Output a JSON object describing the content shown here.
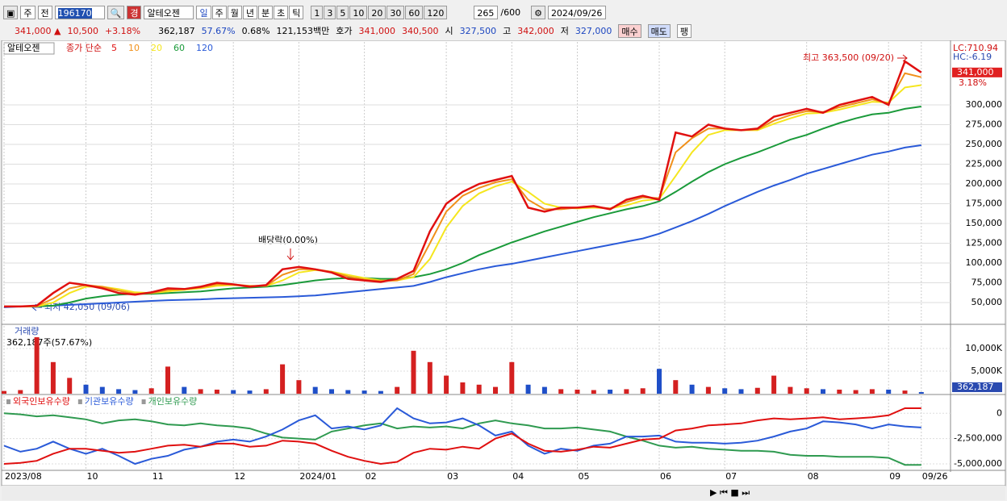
{
  "toolbar": {
    "period_type": "주",
    "prev": "전",
    "code": "196170",
    "badge": "경",
    "stock_name": "알테오젠",
    "periods": [
      "일",
      "주",
      "월",
      "년",
      "분",
      "초",
      "틱"
    ],
    "intervals": [
      "1",
      "3",
      "5",
      "10",
      "20",
      "30",
      "60",
      "120"
    ],
    "count": "265",
    "max_count": "/600",
    "date": "2024/09/26"
  },
  "info_bar": {
    "price": "341,000 ▲",
    "change": "10,500",
    "change_pct": "+3.18%",
    "volume": "362,187",
    "volume_ratio": "57.67%",
    "turnover": "0.68%",
    "amount": "121,153백만",
    "quote_label": "호가",
    "ask": "341,000",
    "bid": "340,500",
    "open_label": "시",
    "open": "327,500",
    "high_label": "고",
    "high": "342,000",
    "low_label": "저",
    "low": "327,000",
    "buy": "매수",
    "sell": "매도",
    "extra": "팽"
  },
  "chart_data": [
    {
      "type": "line",
      "title": "알테오젠",
      "legend_prefix": "종가 단순",
      "ylim": [
        24500,
        379600
      ],
      "yticks": [
        {
          "value": 50000,
          "label": "50,000"
        },
        {
          "value": 75000,
          "label": "75,000"
        },
        {
          "value": 100000,
          "label": "100,000"
        },
        {
          "value": 125000,
          "label": "125,000"
        },
        {
          "value": 150000,
          "label": "150,000"
        },
        {
          "value": 175000,
          "label": "175,000"
        },
        {
          "value": 200000,
          "label": "200,000"
        },
        {
          "value": 225000,
          "label": "225,000"
        },
        {
          "value": 250000,
          "label": "250,000"
        },
        {
          "value": 275000,
          "label": "275,000"
        },
        {
          "value": 300000,
          "label": "300,000"
        }
      ],
      "grid": true,
      "annotations": [
        "최고 363,500 (09/20)",
        "최저 42,050 (09/06)",
        "배당락(0.00%)"
      ],
      "lc_label": "LC:710.94",
      "hc_label": "HC:-6.19",
      "price_label": "341,000",
      "change_label": "3.18%",
      "series": [
        {
          "name": "5",
          "color": "#e01010",
          "values": [
            45000,
            45000,
            46000,
            62000,
            75000,
            72000,
            68000,
            62000,
            60000,
            63000,
            68000,
            67000,
            70000,
            75000,
            73000,
            70000,
            72000,
            92000,
            95000,
            92000,
            88000,
            80000,
            78000,
            76000,
            80000,
            90000,
            140000,
            175000,
            190000,
            200000,
            205000,
            210000,
            170000,
            165000,
            170000,
            170000,
            172000,
            168000,
            180000,
            185000,
            180000,
            265000,
            260000,
            275000,
            270000,
            268000,
            270000,
            285000,
            290000,
            295000,
            290000,
            300000,
            305000,
            310000,
            300000,
            355000,
            341000
          ]
        },
        {
          "name": "10",
          "color": "#f0901a",
          "values": [
            45000,
            45000,
            45500,
            55000,
            68000,
            72000,
            70000,
            65000,
            61000,
            62000,
            66000,
            67000,
            69000,
            73000,
            73000,
            71000,
            71000,
            85000,
            92000,
            92000,
            89000,
            83000,
            79000,
            77000,
            78000,
            86000,
            125000,
            165000,
            185000,
            195000,
            202000,
            206000,
            180000,
            168000,
            168000,
            170000,
            171000,
            169000,
            177000,
            183000,
            182000,
            240000,
            258000,
            270000,
            270000,
            268000,
            269000,
            280000,
            287000,
            292000,
            291000,
            297000,
            302000,
            307000,
            302000,
            340000,
            335000
          ]
        },
        {
          "name": "20",
          "color": "#f5e61e",
          "values": [
            45000,
            45000,
            45000,
            50000,
            62000,
            70000,
            70000,
            67000,
            63000,
            62000,
            64000,
            66000,
            68000,
            71000,
            72000,
            71000,
            71000,
            78000,
            88000,
            91000,
            89000,
            85000,
            81000,
            78000,
            78000,
            82000,
            105000,
            145000,
            172000,
            188000,
            197000,
            203000,
            190000,
            175000,
            170000,
            169000,
            170000,
            169000,
            173000,
            179000,
            181000,
            210000,
            240000,
            262000,
            268000,
            268000,
            268000,
            276000,
            283000,
            289000,
            290000,
            294000,
            299000,
            304000,
            303000,
            322000,
            325000
          ]
        },
        {
          "name": "60",
          "color": "#1a9a3a",
          "values": [
            45000,
            45000,
            45000,
            46000,
            50000,
            55000,
            58000,
            60000,
            61000,
            61000,
            62000,
            63000,
            64000,
            66000,
            68000,
            69000,
            70000,
            72000,
            75000,
            78000,
            80000,
            81000,
            81000,
            80000,
            80000,
            82000,
            86000,
            92000,
            100000,
            110000,
            118000,
            126000,
            133000,
            140000,
            146000,
            152000,
            158000,
            163000,
            168000,
            172000,
            178000,
            190000,
            203000,
            215000,
            225000,
            233000,
            240000,
            248000,
            256000,
            262000,
            270000,
            277000,
            283000,
            288000,
            290000,
            295000,
            298000
          ]
        },
        {
          "name": "120",
          "color": "#2a5ad8",
          "values": [
            44000,
            45000,
            45500,
            46000,
            47000,
            48000,
            49000,
            50000,
            51000,
            52000,
            53000,
            53500,
            54000,
            55000,
            55500,
            56000,
            56500,
            57000,
            58000,
            59000,
            61000,
            63000,
            65000,
            67000,
            69000,
            71000,
            76000,
            82000,
            87000,
            92000,
            96000,
            99000,
            103000,
            107000,
            111000,
            115000,
            119000,
            123000,
            127000,
            131000,
            137000,
            145000,
            153000,
            162000,
            172000,
            181000,
            190000,
            198000,
            205000,
            213000,
            219000,
            225000,
            231000,
            237000,
            241000,
            246000,
            249000
          ]
        }
      ]
    },
    {
      "type": "bar",
      "title": "거래량",
      "subtitle": "362,187주(57.67%)",
      "ylim": [
        0,
        15000000
      ],
      "yticks": [
        {
          "value": 5000000,
          "label": "5,000K"
        },
        {
          "value": 10000000,
          "label": "10,000K"
        }
      ],
      "up_color": "#d42020",
      "down_color": "#1f4fc8",
      "last_label": "362,187",
      "ratio_label": "57.67%",
      "series": [
        {
          "name": "거래량",
          "values": [
            600000,
            800000,
            12500000,
            7000000,
            3500000,
            2000000,
            1500000,
            1000000,
            800000,
            1200000,
            6000000,
            1500000,
            1000000,
            900000,
            800000,
            700000,
            1000000,
            6500000,
            3000000,
            1500000,
            1000000,
            800000,
            700000,
            600000,
            1500000,
            9500000,
            7000000,
            4000000,
            2500000,
            2000000,
            1500000,
            7000000,
            2000000,
            1500000,
            1000000,
            900000,
            800000,
            900000,
            1000000,
            1200000,
            5500000,
            3000000,
            2000000,
            1500000,
            1200000,
            1000000,
            1300000,
            4000000,
            1500000,
            1200000,
            1000000,
            900000,
            800000,
            1000000,
            900000,
            700000,
            362187
          ]
        }
      ]
    },
    {
      "type": "line",
      "ylim": [
        -5560000,
        1700000
      ],
      "yticks": [
        0,
        {
          "value": -2500000,
          "label": "-2,500,000"
        },
        {
          "value": -5000000,
          "label": "-5,000,000"
        }
      ],
      "categories": [
        "2023/08",
        null,
        null,
        null,
        null,
        "10",
        null,
        null,
        null,
        "11",
        null,
        null,
        null,
        null,
        "12",
        null,
        null,
        null,
        "2024/01",
        null,
        null,
        null,
        "02",
        null,
        null,
        null,
        null,
        "03",
        null,
        null,
        null,
        "04",
        null,
        null,
        null,
        "05",
        null,
        null,
        null,
        null,
        "06",
        null,
        null,
        null,
        "07",
        null,
        null,
        null,
        null,
        "08",
        null,
        null,
        null,
        null,
        "09",
        null,
        "09/26"
      ],
      "series": [
        {
          "name": "외국인보유수량",
          "color": "#e01010",
          "values": [
            -5000000,
            -4900000,
            -4700000,
            -4000000,
            -3500000,
            -3500000,
            -3700000,
            -3900000,
            -3800000,
            -3500000,
            -3200000,
            -3100000,
            -3300000,
            -3000000,
            -3000000,
            -3300000,
            -3200000,
            -2700000,
            -2800000,
            -3000000,
            -3700000,
            -4300000,
            -4700000,
            -5000000,
            -4800000,
            -3900000,
            -3500000,
            -3600000,
            -3300000,
            -3500000,
            -2500000,
            -2000000,
            -3000000,
            -3700000,
            -3800000,
            -3600000,
            -3300000,
            -3400000,
            -3000000,
            -2600000,
            -2500000,
            -1700000,
            -1500000,
            -1200000,
            -1100000,
            -1000000,
            -700000,
            -500000,
            -600000,
            -500000,
            -400000,
            -600000,
            -500000,
            -400000,
            -200000,
            500000,
            500000
          ]
        },
        {
          "name": "기관보유수량",
          "color": "#2a5ad8",
          "values": [
            -3200000,
            -3800000,
            -3500000,
            -2800000,
            -3500000,
            -4000000,
            -3500000,
            -4200000,
            -5000000,
            -4500000,
            -4200000,
            -3600000,
            -3300000,
            -2800000,
            -2600000,
            -2800000,
            -2300000,
            -1600000,
            -700000,
            -200000,
            -1500000,
            -1300000,
            -1600000,
            -1200000,
            500000,
            -500000,
            -1000000,
            -900000,
            -500000,
            -1200000,
            -2200000,
            -1800000,
            -3200000,
            -4000000,
            -3500000,
            -3700000,
            -3200000,
            -3000000,
            -2300000,
            -2300000,
            -2200000,
            -2800000,
            -2900000,
            -2900000,
            -3000000,
            -2900000,
            -2700000,
            -2300000,
            -1800000,
            -1500000,
            -800000,
            -900000,
            -1100000,
            -1500000,
            -1100000,
            -1300000,
            -1400000
          ]
        },
        {
          "name": "개인보유수량",
          "color": "#2f9a50",
          "values": [
            0,
            -100000,
            -300000,
            -200000,
            -400000,
            -600000,
            -1000000,
            -700000,
            -600000,
            -800000,
            -1100000,
            -1200000,
            -1000000,
            -1200000,
            -1300000,
            -1500000,
            -2000000,
            -2400000,
            -2500000,
            -2600000,
            -1800000,
            -1500000,
            -1200000,
            -1000000,
            -1500000,
            -1300000,
            -1400000,
            -1300000,
            -1500000,
            -1000000,
            -700000,
            -1000000,
            -1200000,
            -1500000,
            -1500000,
            -1400000,
            -1600000,
            -1800000,
            -2300000,
            -2700000,
            -3200000,
            -3400000,
            -3300000,
            -3500000,
            -3600000,
            -3700000,
            -3700000,
            -3800000,
            -4100000,
            -4200000,
            -4200000,
            -4300000,
            -4300000,
            -4300000,
            -4400000,
            -5100000,
            -5100000
          ]
        }
      ]
    }
  ]
}
